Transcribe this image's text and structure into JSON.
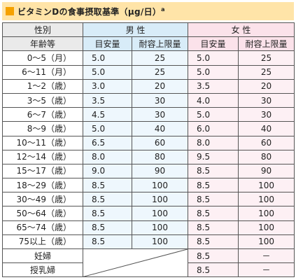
{
  "title": "ビタミンDの食事摂取基準（μg/日）",
  "title_suffix": "a",
  "header": {
    "col_group": "性別",
    "male": "男 性",
    "female": "女 性",
    "age": "年齢等",
    "adequate": "目安量",
    "upper": "耐容上限量"
  },
  "rows": [
    {
      "age": "0～5（月）",
      "m_ai": "5.0",
      "m_ul": "25",
      "f_ai": "5.0",
      "f_ul": "25"
    },
    {
      "age": "6～11（月）",
      "m_ai": "5.0",
      "m_ul": "25",
      "f_ai": "5.0",
      "f_ul": "25"
    },
    {
      "age": "1～2（歳）",
      "m_ai": "3.0",
      "m_ul": "20",
      "f_ai": "3.5",
      "f_ul": "20"
    },
    {
      "age": "3～5（歳）",
      "m_ai": "3.5",
      "m_ul": "30",
      "f_ai": "4.0",
      "f_ul": "30"
    },
    {
      "age": "6～7（歳）",
      "m_ai": "4.5",
      "m_ul": "30",
      "f_ai": "5.0",
      "f_ul": "30"
    },
    {
      "age": "8～9（歳）",
      "m_ai": "5.0",
      "m_ul": "40",
      "f_ai": "6.0",
      "f_ul": "40"
    },
    {
      "age": "10～11（歳）",
      "m_ai": "6.5",
      "m_ul": "60",
      "f_ai": "8.0",
      "f_ul": "60"
    },
    {
      "age": "12～14（歳）",
      "m_ai": "8.0",
      "m_ul": "80",
      "f_ai": "9.5",
      "f_ul": "80"
    },
    {
      "age": "15～17（歳）",
      "m_ai": "9.0",
      "m_ul": "90",
      "f_ai": "8.5",
      "f_ul": "90"
    },
    {
      "age": "18～29（歳）",
      "m_ai": "8.5",
      "m_ul": "100",
      "f_ai": "8.5",
      "f_ul": "100"
    },
    {
      "age": "30～49（歳）",
      "m_ai": "8.5",
      "m_ul": "100",
      "f_ai": "8.5",
      "f_ul": "100"
    },
    {
      "age": "50～64（歳）",
      "m_ai": "8.5",
      "m_ul": "100",
      "f_ai": "8.5",
      "f_ul": "100"
    },
    {
      "age": "65～74（歳）",
      "m_ai": "8.5",
      "m_ul": "100",
      "f_ai": "8.5",
      "f_ul": "100"
    },
    {
      "age": "75以上（歳）",
      "m_ai": "8.5",
      "m_ul": "100",
      "f_ai": "8.5",
      "f_ul": "100"
    }
  ],
  "special": [
    {
      "label": "妊婦",
      "f_ai": "8.5",
      "f_ul": "－"
    },
    {
      "label": "授乳婦",
      "f_ai": "8.5",
      "f_ul": "－"
    }
  ],
  "colors": {
    "title_bg": "#ffe4a8",
    "title_accent": "#f5a100",
    "male_header": "#d8ecf8",
    "female_header": "#fbe2ea"
  }
}
